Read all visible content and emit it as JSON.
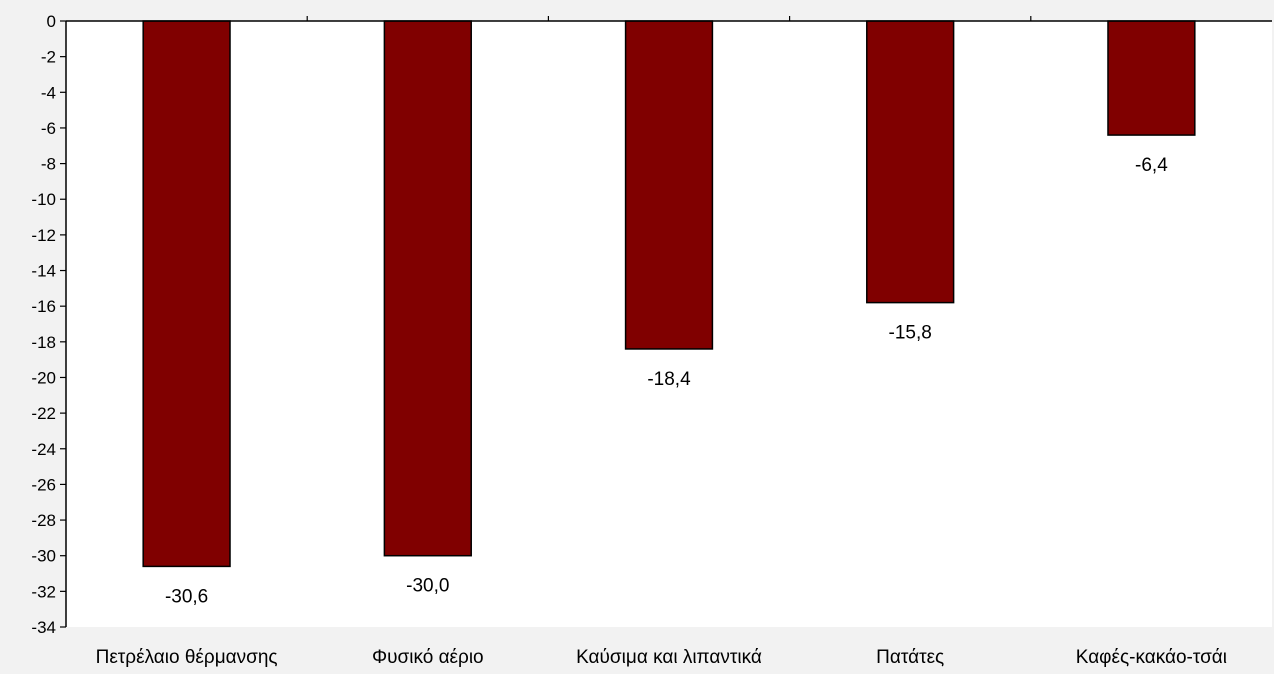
{
  "chart_data": {
    "type": "bar",
    "categories": [
      "Πετρέλαιο θέρμανσης",
      "Φυσικό αέριο",
      "Καύσιμα και λιπαντικά",
      "Πατάτες",
      "Καφές-κακάο-τσάι"
    ],
    "values": [
      -30.6,
      -30.0,
      -18.4,
      -15.8,
      -6.4
    ],
    "data_labels": [
      "-30,6",
      "-30,0",
      "-18,4",
      "-15,8",
      "-6,4"
    ],
    "title": "",
    "xlabel": "",
    "ylabel": "",
    "ylim": [
      -34,
      0
    ],
    "ytick_step": 2,
    "grid": false,
    "legend": "none",
    "colors": {
      "bar_fill": "#800000",
      "bar_stroke": "#000000",
      "plot_background": "#ffffff",
      "page_background": "#f2f2f2"
    }
  }
}
